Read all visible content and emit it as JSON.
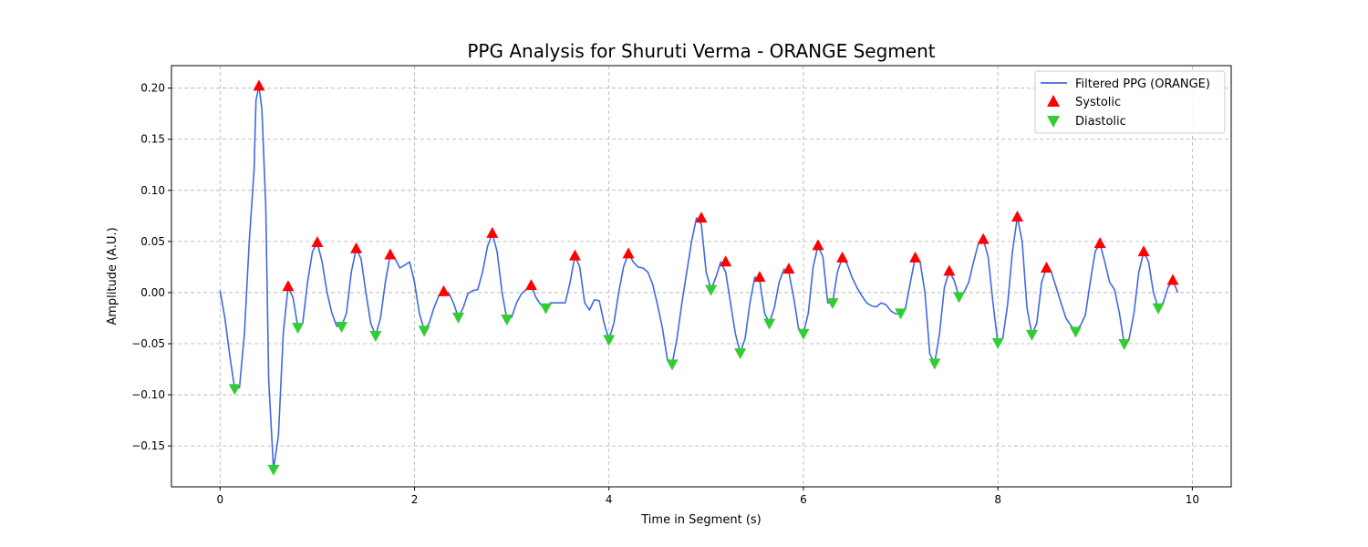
{
  "chart_data": {
    "type": "line",
    "title": "PPG Analysis for Shuruti Verma - ORANGE Segment",
    "xlabel": "Time in Segment (s)",
    "ylabel": "Amplitude (A.U.)",
    "xlim": [
      -0.5,
      10.4
    ],
    "ylim": [
      -0.19,
      0.222
    ],
    "x_ticks": [
      0,
      2,
      4,
      6,
      8,
      10
    ],
    "y_ticks": [
      -0.15,
      -0.1,
      -0.05,
      0.0,
      0.05,
      0.1,
      0.15,
      0.2
    ],
    "x_tick_labels": [
      "0",
      "2",
      "4",
      "6",
      "8",
      "10"
    ],
    "y_tick_labels": [
      "−0.15",
      "−0.10",
      "−0.05",
      "0.00",
      "0.05",
      "0.10",
      "0.15",
      "0.20"
    ],
    "grid": true,
    "legend_position": "top-right",
    "colors": {
      "line": "#4169e1",
      "systolic": "#ff0000",
      "diastolic": "#32cd32"
    },
    "series": [
      {
        "name": "Filtered PPG (ORANGE)",
        "kind": "line",
        "points": [
          [
            0.0,
            0.002
          ],
          [
            0.05,
            -0.025
          ],
          [
            0.1,
            -0.062
          ],
          [
            0.15,
            -0.094
          ],
          [
            0.2,
            -0.093
          ],
          [
            0.25,
            -0.04
          ],
          [
            0.3,
            0.05
          ],
          [
            0.35,
            0.12
          ],
          [
            0.37,
            0.188
          ],
          [
            0.4,
            0.202
          ],
          [
            0.43,
            0.18
          ],
          [
            0.47,
            0.085
          ],
          [
            0.5,
            -0.085
          ],
          [
            0.55,
            -0.173
          ],
          [
            0.6,
            -0.14
          ],
          [
            0.65,
            -0.04
          ],
          [
            0.7,
            0.006
          ],
          [
            0.75,
            -0.005
          ],
          [
            0.8,
            -0.034
          ],
          [
            0.85,
            -0.03
          ],
          [
            0.9,
            0.01
          ],
          [
            0.95,
            0.04
          ],
          [
            1.0,
            0.049
          ],
          [
            1.05,
            0.03
          ],
          [
            1.1,
            0.0
          ],
          [
            1.15,
            -0.02
          ],
          [
            1.2,
            -0.033
          ],
          [
            1.25,
            -0.033
          ],
          [
            1.3,
            -0.02
          ],
          [
            1.35,
            0.02
          ],
          [
            1.4,
            0.043
          ],
          [
            1.45,
            0.033
          ],
          [
            1.5,
            0.0
          ],
          [
            1.55,
            -0.03
          ],
          [
            1.6,
            -0.042
          ],
          [
            1.65,
            -0.025
          ],
          [
            1.7,
            0.01
          ],
          [
            1.75,
            0.037
          ],
          [
            1.8,
            0.033
          ],
          [
            1.85,
            0.024
          ],
          [
            1.9,
            0.027
          ],
          [
            1.95,
            0.03
          ],
          [
            2.0,
            0.01
          ],
          [
            2.05,
            -0.02
          ],
          [
            2.1,
            -0.037
          ],
          [
            2.15,
            -0.03
          ],
          [
            2.2,
            -0.015
          ],
          [
            2.25,
            -0.003
          ],
          [
            2.3,
            0.001
          ],
          [
            2.35,
            0.0
          ],
          [
            2.4,
            -0.01
          ],
          [
            2.45,
            -0.024
          ],
          [
            2.5,
            -0.015
          ],
          [
            2.55,
            -0.001
          ],
          [
            2.6,
            0.002
          ],
          [
            2.65,
            0.003
          ],
          [
            2.7,
            0.02
          ],
          [
            2.75,
            0.045
          ],
          [
            2.8,
            0.058
          ],
          [
            2.85,
            0.04
          ],
          [
            2.9,
            0.0
          ],
          [
            2.95,
            -0.026
          ],
          [
            3.0,
            -0.024
          ],
          [
            3.05,
            -0.01
          ],
          [
            3.1,
            -0.001
          ],
          [
            3.15,
            0.003
          ],
          [
            3.2,
            0.007
          ],
          [
            3.25,
            -0.005
          ],
          [
            3.3,
            -0.012
          ],
          [
            3.35,
            -0.015
          ],
          [
            3.4,
            -0.01
          ],
          [
            3.45,
            -0.01
          ],
          [
            3.5,
            -0.01
          ],
          [
            3.55,
            -0.01
          ],
          [
            3.6,
            0.01
          ],
          [
            3.65,
            0.036
          ],
          [
            3.7,
            0.025
          ],
          [
            3.75,
            -0.01
          ],
          [
            3.8,
            -0.017
          ],
          [
            3.85,
            -0.007
          ],
          [
            3.9,
            -0.008
          ],
          [
            3.95,
            -0.03
          ],
          [
            4.0,
            -0.046
          ],
          [
            4.05,
            -0.03
          ],
          [
            4.1,
            0.0
          ],
          [
            4.15,
            0.025
          ],
          [
            4.2,
            0.038
          ],
          [
            4.25,
            0.03
          ],
          [
            4.3,
            0.025
          ],
          [
            4.35,
            0.024
          ],
          [
            4.4,
            0.02
          ],
          [
            4.45,
            0.008
          ],
          [
            4.5,
            -0.012
          ],
          [
            4.55,
            -0.035
          ],
          [
            4.6,
            -0.065
          ],
          [
            4.65,
            -0.07
          ],
          [
            4.7,
            -0.045
          ],
          [
            4.75,
            -0.01
          ],
          [
            4.8,
            0.02
          ],
          [
            4.85,
            0.05
          ],
          [
            4.9,
            0.073
          ],
          [
            4.95,
            0.067
          ],
          [
            5.0,
            0.02
          ],
          [
            5.05,
            0.003
          ],
          [
            5.1,
            0.015
          ],
          [
            5.15,
            0.03
          ],
          [
            5.2,
            0.02
          ],
          [
            5.25,
            -0.01
          ],
          [
            5.3,
            -0.04
          ],
          [
            5.35,
            -0.059
          ],
          [
            5.4,
            -0.045
          ],
          [
            5.45,
            -0.01
          ],
          [
            5.5,
            0.015
          ],
          [
            5.55,
            0.012
          ],
          [
            5.6,
            -0.02
          ],
          [
            5.65,
            -0.03
          ],
          [
            5.7,
            -0.015
          ],
          [
            5.75,
            0.01
          ],
          [
            5.8,
            0.023
          ],
          [
            5.85,
            0.02
          ],
          [
            5.9,
            -0.005
          ],
          [
            5.95,
            -0.035
          ],
          [
            6.0,
            -0.04
          ],
          [
            6.05,
            -0.02
          ],
          [
            6.1,
            0.025
          ],
          [
            6.15,
            0.046
          ],
          [
            6.2,
            0.035
          ],
          [
            6.25,
            -0.01
          ],
          [
            6.3,
            -0.01
          ],
          [
            6.35,
            0.02
          ],
          [
            6.4,
            0.034
          ],
          [
            6.45,
            0.028
          ],
          [
            6.5,
            0.015
          ],
          [
            6.55,
            0.005
          ],
          [
            6.6,
            -0.003
          ],
          [
            6.65,
            -0.01
          ],
          [
            6.7,
            -0.013
          ],
          [
            6.75,
            -0.014
          ],
          [
            6.8,
            -0.01
          ],
          [
            6.85,
            -0.012
          ],
          [
            6.9,
            -0.018
          ],
          [
            6.95,
            -0.021
          ],
          [
            7.0,
            -0.02
          ],
          [
            7.05,
            -0.015
          ],
          [
            7.1,
            0.01
          ],
          [
            7.15,
            0.034
          ],
          [
            7.2,
            0.03
          ],
          [
            7.25,
            0.0
          ],
          [
            7.3,
            -0.06
          ],
          [
            7.35,
            -0.069
          ],
          [
            7.4,
            -0.04
          ],
          [
            7.45,
            0.005
          ],
          [
            7.5,
            0.021
          ],
          [
            7.55,
            0.012
          ],
          [
            7.6,
            -0.004
          ],
          [
            7.65,
            0.0
          ],
          [
            7.7,
            0.01
          ],
          [
            7.75,
            0.03
          ],
          [
            7.8,
            0.048
          ],
          [
            7.85,
            0.052
          ],
          [
            7.9,
            0.035
          ],
          [
            7.95,
            -0.01
          ],
          [
            8.0,
            -0.049
          ],
          [
            8.05,
            -0.045
          ],
          [
            8.1,
            -0.012
          ],
          [
            8.15,
            0.04
          ],
          [
            8.2,
            0.074
          ],
          [
            8.25,
            0.05
          ],
          [
            8.3,
            -0.015
          ],
          [
            8.35,
            -0.041
          ],
          [
            8.4,
            -0.03
          ],
          [
            8.45,
            0.01
          ],
          [
            8.5,
            0.024
          ],
          [
            8.55,
            0.02
          ],
          [
            8.6,
            0.005
          ],
          [
            8.65,
            -0.01
          ],
          [
            8.7,
            -0.025
          ],
          [
            8.75,
            -0.032
          ],
          [
            8.8,
            -0.038
          ],
          [
            8.85,
            -0.032
          ],
          [
            8.9,
            -0.022
          ],
          [
            8.95,
            0.01
          ],
          [
            9.0,
            0.04
          ],
          [
            9.05,
            0.048
          ],
          [
            9.1,
            0.03
          ],
          [
            9.15,
            0.01
          ],
          [
            9.2,
            0.003
          ],
          [
            9.25,
            -0.02
          ],
          [
            9.3,
            -0.05
          ],
          [
            9.35,
            -0.045
          ],
          [
            9.4,
            -0.02
          ],
          [
            9.45,
            0.02
          ],
          [
            9.5,
            0.04
          ],
          [
            9.55,
            0.03
          ],
          [
            9.6,
            0.0
          ],
          [
            9.65,
            -0.015
          ],
          [
            9.7,
            -0.01
          ],
          [
            9.75,
            0.005
          ],
          [
            9.8,
            0.012
          ],
          [
            9.85,
            0.0
          ]
        ]
      },
      {
        "name": "Systolic",
        "kind": "marker-up",
        "points": [
          [
            0.4,
            0.202
          ],
          [
            0.7,
            0.006
          ],
          [
            1.0,
            0.049
          ],
          [
            1.4,
            0.043
          ],
          [
            1.75,
            0.037
          ],
          [
            2.3,
            0.001
          ],
          [
            2.8,
            0.058
          ],
          [
            3.2,
            0.007
          ],
          [
            3.65,
            0.036
          ],
          [
            4.2,
            0.038
          ],
          [
            4.95,
            0.073
          ],
          [
            5.2,
            0.03
          ],
          [
            5.55,
            0.015
          ],
          [
            5.85,
            0.023
          ],
          [
            6.15,
            0.046
          ],
          [
            6.4,
            0.034
          ],
          [
            7.15,
            0.034
          ],
          [
            7.5,
            0.021
          ],
          [
            7.85,
            0.052
          ],
          [
            8.2,
            0.074
          ],
          [
            8.5,
            0.024
          ],
          [
            9.05,
            0.048
          ],
          [
            9.5,
            0.04
          ],
          [
            9.8,
            0.012
          ]
        ]
      },
      {
        "name": "Diastolic",
        "kind": "marker-down",
        "points": [
          [
            0.15,
            -0.094
          ],
          [
            0.55,
            -0.173
          ],
          [
            0.8,
            -0.034
          ],
          [
            1.25,
            -0.033
          ],
          [
            1.6,
            -0.042
          ],
          [
            2.1,
            -0.037
          ],
          [
            2.45,
            -0.024
          ],
          [
            2.95,
            -0.026
          ],
          [
            3.35,
            -0.015
          ],
          [
            4.0,
            -0.046
          ],
          [
            4.65,
            -0.07
          ],
          [
            5.05,
            0.003
          ],
          [
            5.35,
            -0.059
          ],
          [
            5.65,
            -0.03
          ],
          [
            6.0,
            -0.04
          ],
          [
            6.3,
            -0.01
          ],
          [
            7.0,
            -0.02
          ],
          [
            7.35,
            -0.069
          ],
          [
            7.6,
            -0.004
          ],
          [
            8.0,
            -0.049
          ],
          [
            8.35,
            -0.041
          ],
          [
            8.8,
            -0.038
          ],
          [
            9.3,
            -0.05
          ],
          [
            9.65,
            -0.015
          ]
        ]
      }
    ]
  }
}
